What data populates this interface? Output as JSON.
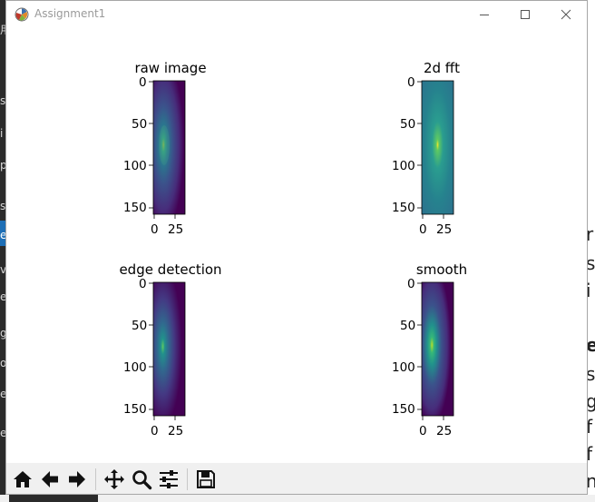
{
  "window": {
    "title": "Assignment1",
    "controls": [
      "minimize",
      "maximize",
      "close"
    ]
  },
  "figure": {
    "panels": [
      {
        "title": "raw image",
        "yticks": [
          "0",
          "50",
          "100",
          "150"
        ],
        "xticks": [
          "0",
          "25"
        ]
      },
      {
        "title": "2d fft",
        "yticks": [
          "0",
          "50",
          "100",
          "150"
        ],
        "xticks": [
          "0",
          "25"
        ]
      },
      {
        "title": "edge detection",
        "yticks": [
          "0",
          "50",
          "100",
          "150"
        ],
        "xticks": [
          "0",
          "25"
        ]
      },
      {
        "title": "smooth",
        "yticks": [
          "0",
          "50",
          "100",
          "150"
        ],
        "xticks": [
          "0",
          "25"
        ]
      }
    ],
    "colormap": "viridis"
  },
  "toolbar": {
    "buttons": [
      "home-icon",
      "back-arrow-icon",
      "forward-arrow-icon",
      "pan-icon",
      "zoom-icon",
      "configure-subplots-icon",
      "save-icon"
    ]
  },
  "background": {
    "left_fragments": [
      "用",
      "s",
      "i",
      "p",
      "st",
      "ec",
      "v",
      "ev",
      "g",
      "on",
      "ec",
      "en"
    ],
    "right_fragments": [
      "r",
      "s",
      "i",
      "e",
      "s",
      "g",
      "f",
      "f",
      "n"
    ]
  }
}
